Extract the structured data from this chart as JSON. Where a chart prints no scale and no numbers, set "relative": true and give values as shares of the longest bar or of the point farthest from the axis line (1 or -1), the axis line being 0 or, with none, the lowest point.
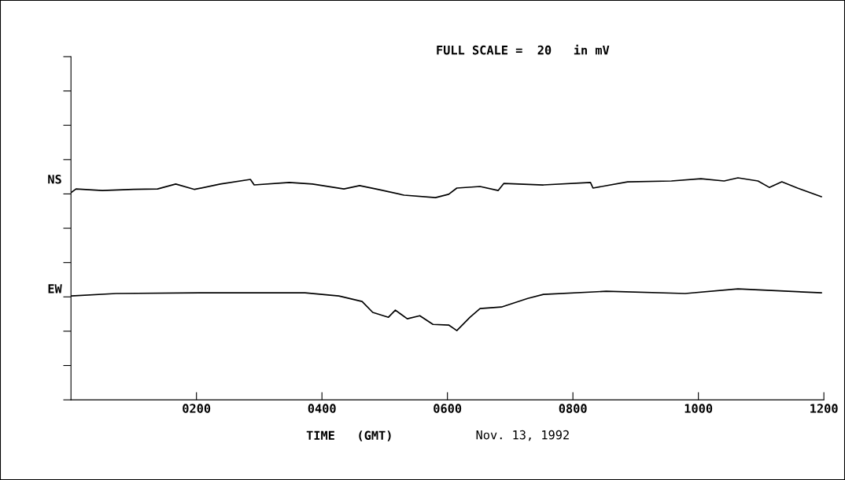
{
  "chart_data": {
    "type": "line",
    "relative": true,
    "title": "FULL SCALE =  20   in mV",
    "xlabel": "TIME   (GMT)",
    "annotations": [
      "Nov. 13, 1992"
    ],
    "xlim": [
      0,
      1200
    ],
    "xticks": [
      {
        "value": 200,
        "label": "0200"
      },
      {
        "value": 400,
        "label": "0400"
      },
      {
        "value": 600,
        "label": "0600"
      },
      {
        "value": 800,
        "label": "0800"
      },
      {
        "value": 1000,
        "label": "1000"
      },
      {
        "value": 1200,
        "label": "1200"
      }
    ],
    "grid": false,
    "legend": "left",
    "marker": "none",
    "line_style": "solid",
    "series": [
      {
        "name": "NS",
        "color": "#000000",
        "x": [
          0,
          8,
          50,
          100,
          138,
          167,
          197,
          238,
          286,
          292,
          348,
          385,
          435,
          460,
          489,
          531,
          581,
          602,
          615,
          652,
          681,
          690,
          753,
          828,
          832,
          887,
          957,
          1004,
          1041,
          1063,
          1095,
          1113,
          1133,
          1158,
          1196
        ],
        "values": [
          0.933,
          0.95,
          0.943,
          0.948,
          0.95,
          0.972,
          0.948,
          0.972,
          0.993,
          0.968,
          0.979,
          0.972,
          0.95,
          0.965,
          0.948,
          0.922,
          0.911,
          0.926,
          0.954,
          0.961,
          0.943,
          0.975,
          0.968,
          0.979,
          0.954,
          0.982,
          0.986,
          0.996,
          0.986,
          1,
          0.986,
          0.957,
          0.982,
          0.954,
          0.915
        ]
      },
      {
        "name": "EW",
        "color": "#000000",
        "x": [
          0,
          72,
          205,
          373,
          427,
          464,
          481,
          506,
          517,
          536,
          556,
          577,
          602,
          615,
          636,
          652,
          686,
          728,
          753,
          853,
          979,
          1063,
          1196
        ],
        "values": [
          0.468,
          0.479,
          0.482,
          0.482,
          0.468,
          0.443,
          0.394,
          0.372,
          0.404,
          0.365,
          0.379,
          0.34,
          0.337,
          0.312,
          0.372,
          0.411,
          0.418,
          0.457,
          0.475,
          0.489,
          0.479,
          0.5,
          0.482
        ]
      }
    ]
  }
}
